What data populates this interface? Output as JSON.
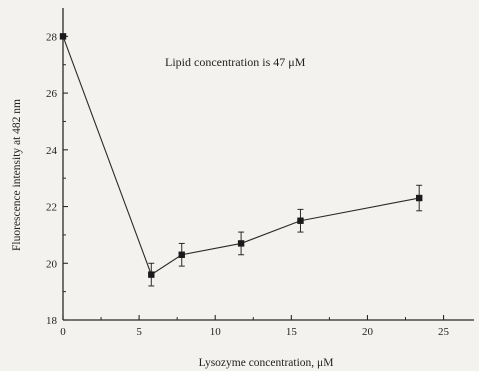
{
  "chart_data": {
    "type": "line",
    "title": "",
    "xlabel": "Lysozyme concentration, μM",
    "ylabel": "Fluorescence intensity at 482 nm",
    "annotation": "Lipid concentration is 47 μM",
    "xlim": [
      0,
      27
    ],
    "ylim": [
      18,
      29
    ],
    "x_ticks": [
      0,
      5,
      10,
      15,
      20,
      25
    ],
    "y_ticks": [
      18,
      20,
      22,
      24,
      26,
      28
    ],
    "grid": false,
    "series": [
      {
        "x": [
          0,
          5.8,
          7.8,
          11.7,
          15.6,
          23.4
        ],
        "y": [
          28.0,
          19.6,
          20.3,
          20.7,
          21.5,
          22.3
        ],
        "error": [
          0.0,
          0.4,
          0.4,
          0.4,
          0.4,
          0.45
        ]
      }
    ],
    "colors": {
      "line": "#2a2a2a",
      "marker": "#1a1a1a",
      "axis": "#2a2a2a"
    }
  }
}
